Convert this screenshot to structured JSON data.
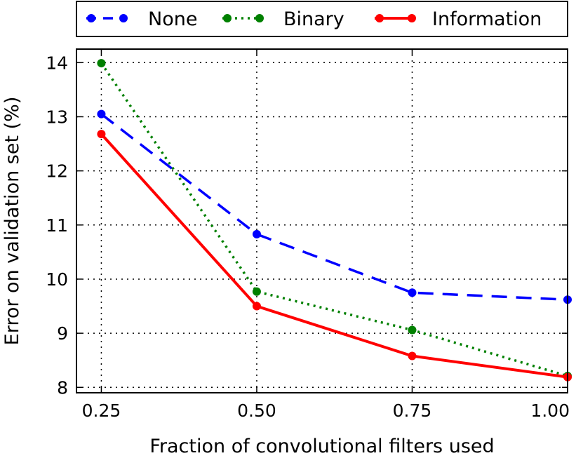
{
  "chart_data": {
    "type": "line",
    "title": "",
    "xlabel": "Fraction of convolutional filters used",
    "ylabel": "Error on validation set (%)",
    "x": [
      0.25,
      0.5,
      0.75,
      1.0
    ],
    "xticks": [
      "0.25",
      "0.50",
      "0.75",
      "1.00"
    ],
    "yticks": [
      "8",
      "9",
      "10",
      "11",
      "12",
      "13",
      "14"
    ],
    "xlim": [
      0.21,
      1.0
    ],
    "ylim": [
      7.9,
      14.25
    ],
    "grid": true,
    "legend_position": "top",
    "series": [
      {
        "name": "None",
        "color": "#0000ff",
        "style": "dashed",
        "values": [
          13.05,
          10.83,
          9.75,
          9.62
        ]
      },
      {
        "name": "Binary",
        "color": "#008000",
        "style": "dotted",
        "values": [
          13.99,
          9.77,
          9.06,
          8.21
        ]
      },
      {
        "name": "Information",
        "color": "#ff0000",
        "style": "solid",
        "values": [
          12.68,
          9.5,
          8.58,
          8.19
        ]
      }
    ]
  }
}
